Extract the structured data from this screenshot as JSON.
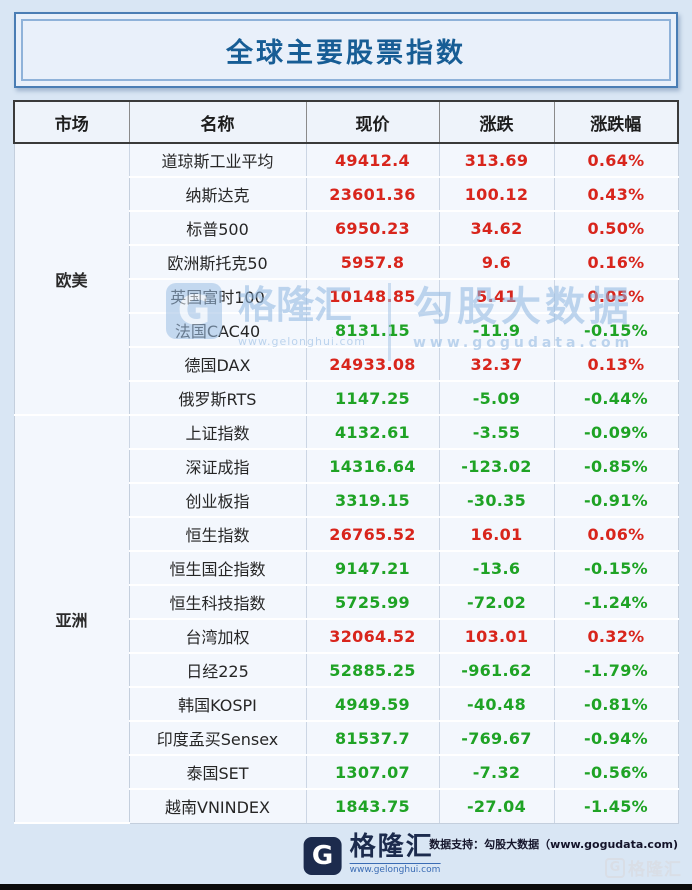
{
  "chart_data": {
    "type": "table",
    "title": "全球主要股票指数",
    "columns": [
      "市场",
      "名称",
      "现价",
      "涨跌",
      "涨跌幅"
    ],
    "groups": [
      {
        "market": "欧美",
        "rows": [
          {
            "name": "道琼斯工业平均",
            "price": "49412.4",
            "change": "313.69",
            "pct": "0.64%",
            "dir": "up"
          },
          {
            "name": "纳斯达克",
            "price": "23601.36",
            "change": "100.12",
            "pct": "0.43%",
            "dir": "up"
          },
          {
            "name": "标普500",
            "price": "6950.23",
            "change": "34.62",
            "pct": "0.50%",
            "dir": "up"
          },
          {
            "name": "欧洲斯托克50",
            "price": "5957.8",
            "change": "9.6",
            "pct": "0.16%",
            "dir": "up"
          },
          {
            "name": "英国富时100",
            "price": "10148.85",
            "change": "5.41",
            "pct": "0.05%",
            "dir": "up"
          },
          {
            "name": "法国CAC40",
            "price": "8131.15",
            "change": "-11.9",
            "pct": "-0.15%",
            "dir": "down"
          },
          {
            "name": "德国DAX",
            "price": "24933.08",
            "change": "32.37",
            "pct": "0.13%",
            "dir": "up"
          },
          {
            "name": "俄罗斯RTS",
            "price": "1147.25",
            "change": "-5.09",
            "pct": "-0.44%",
            "dir": "down"
          }
        ]
      },
      {
        "market": "亚洲",
        "rows": [
          {
            "name": "上证指数",
            "price": "4132.61",
            "change": "-3.55",
            "pct": "-0.09%",
            "dir": "down"
          },
          {
            "name": "深证成指",
            "price": "14316.64",
            "change": "-123.02",
            "pct": "-0.85%",
            "dir": "down"
          },
          {
            "name": "创业板指",
            "price": "3319.15",
            "change": "-30.35",
            "pct": "-0.91%",
            "dir": "down"
          },
          {
            "name": "恒生指数",
            "price": "26765.52",
            "change": "16.01",
            "pct": "0.06%",
            "dir": "up"
          },
          {
            "name": "恒生国企指数",
            "price": "9147.21",
            "change": "-13.6",
            "pct": "-0.15%",
            "dir": "down"
          },
          {
            "name": "恒生科技指数",
            "price": "5725.99",
            "change": "-72.02",
            "pct": "-1.24%",
            "dir": "down"
          },
          {
            "name": "台湾加权",
            "price": "32064.52",
            "change": "103.01",
            "pct": "0.32%",
            "dir": "up"
          },
          {
            "name": "日经225",
            "price": "52885.25",
            "change": "-961.62",
            "pct": "-1.79%",
            "dir": "down"
          },
          {
            "name": "韩国KOSPI",
            "price": "4949.59",
            "change": "-40.48",
            "pct": "-0.81%",
            "dir": "down"
          },
          {
            "name": "印度孟买Sensex",
            "price": "81537.7",
            "change": "-769.67",
            "pct": "-0.94%",
            "dir": "down"
          },
          {
            "name": "泰国SET",
            "price": "1307.07",
            "change": "-7.32",
            "pct": "-0.56%",
            "dir": "down"
          },
          {
            "name": "越南VNINDEX",
            "price": "1843.75",
            "change": "-27.04",
            "pct": "-1.45%",
            "dir": "down"
          }
        ]
      }
    ],
    "colors": {
      "up": "#d8251c",
      "down": "#1fa325",
      "title": "#175d95",
      "europe_row_bg": "#f3ebcd",
      "asia_row_bg": "#d3ddef",
      "page_bg": "#d9e6f4"
    },
    "legend_note": "red = up, green = down"
  },
  "watermark_center": {
    "logo_letter": "G",
    "brand": "格隆汇",
    "brand_url": "www.gelonghui.com",
    "partner": "勾股大数据",
    "partner_url": "www.gogudata.com"
  },
  "footer": {
    "logo_letter": "G",
    "brand": "格隆汇",
    "brand_url": "www.gelonghui.com",
    "support": "数据支持：勾股大数据（www.gogudata.com)",
    "corner_logo_letter": "G",
    "corner_watermark": "格隆汇"
  }
}
